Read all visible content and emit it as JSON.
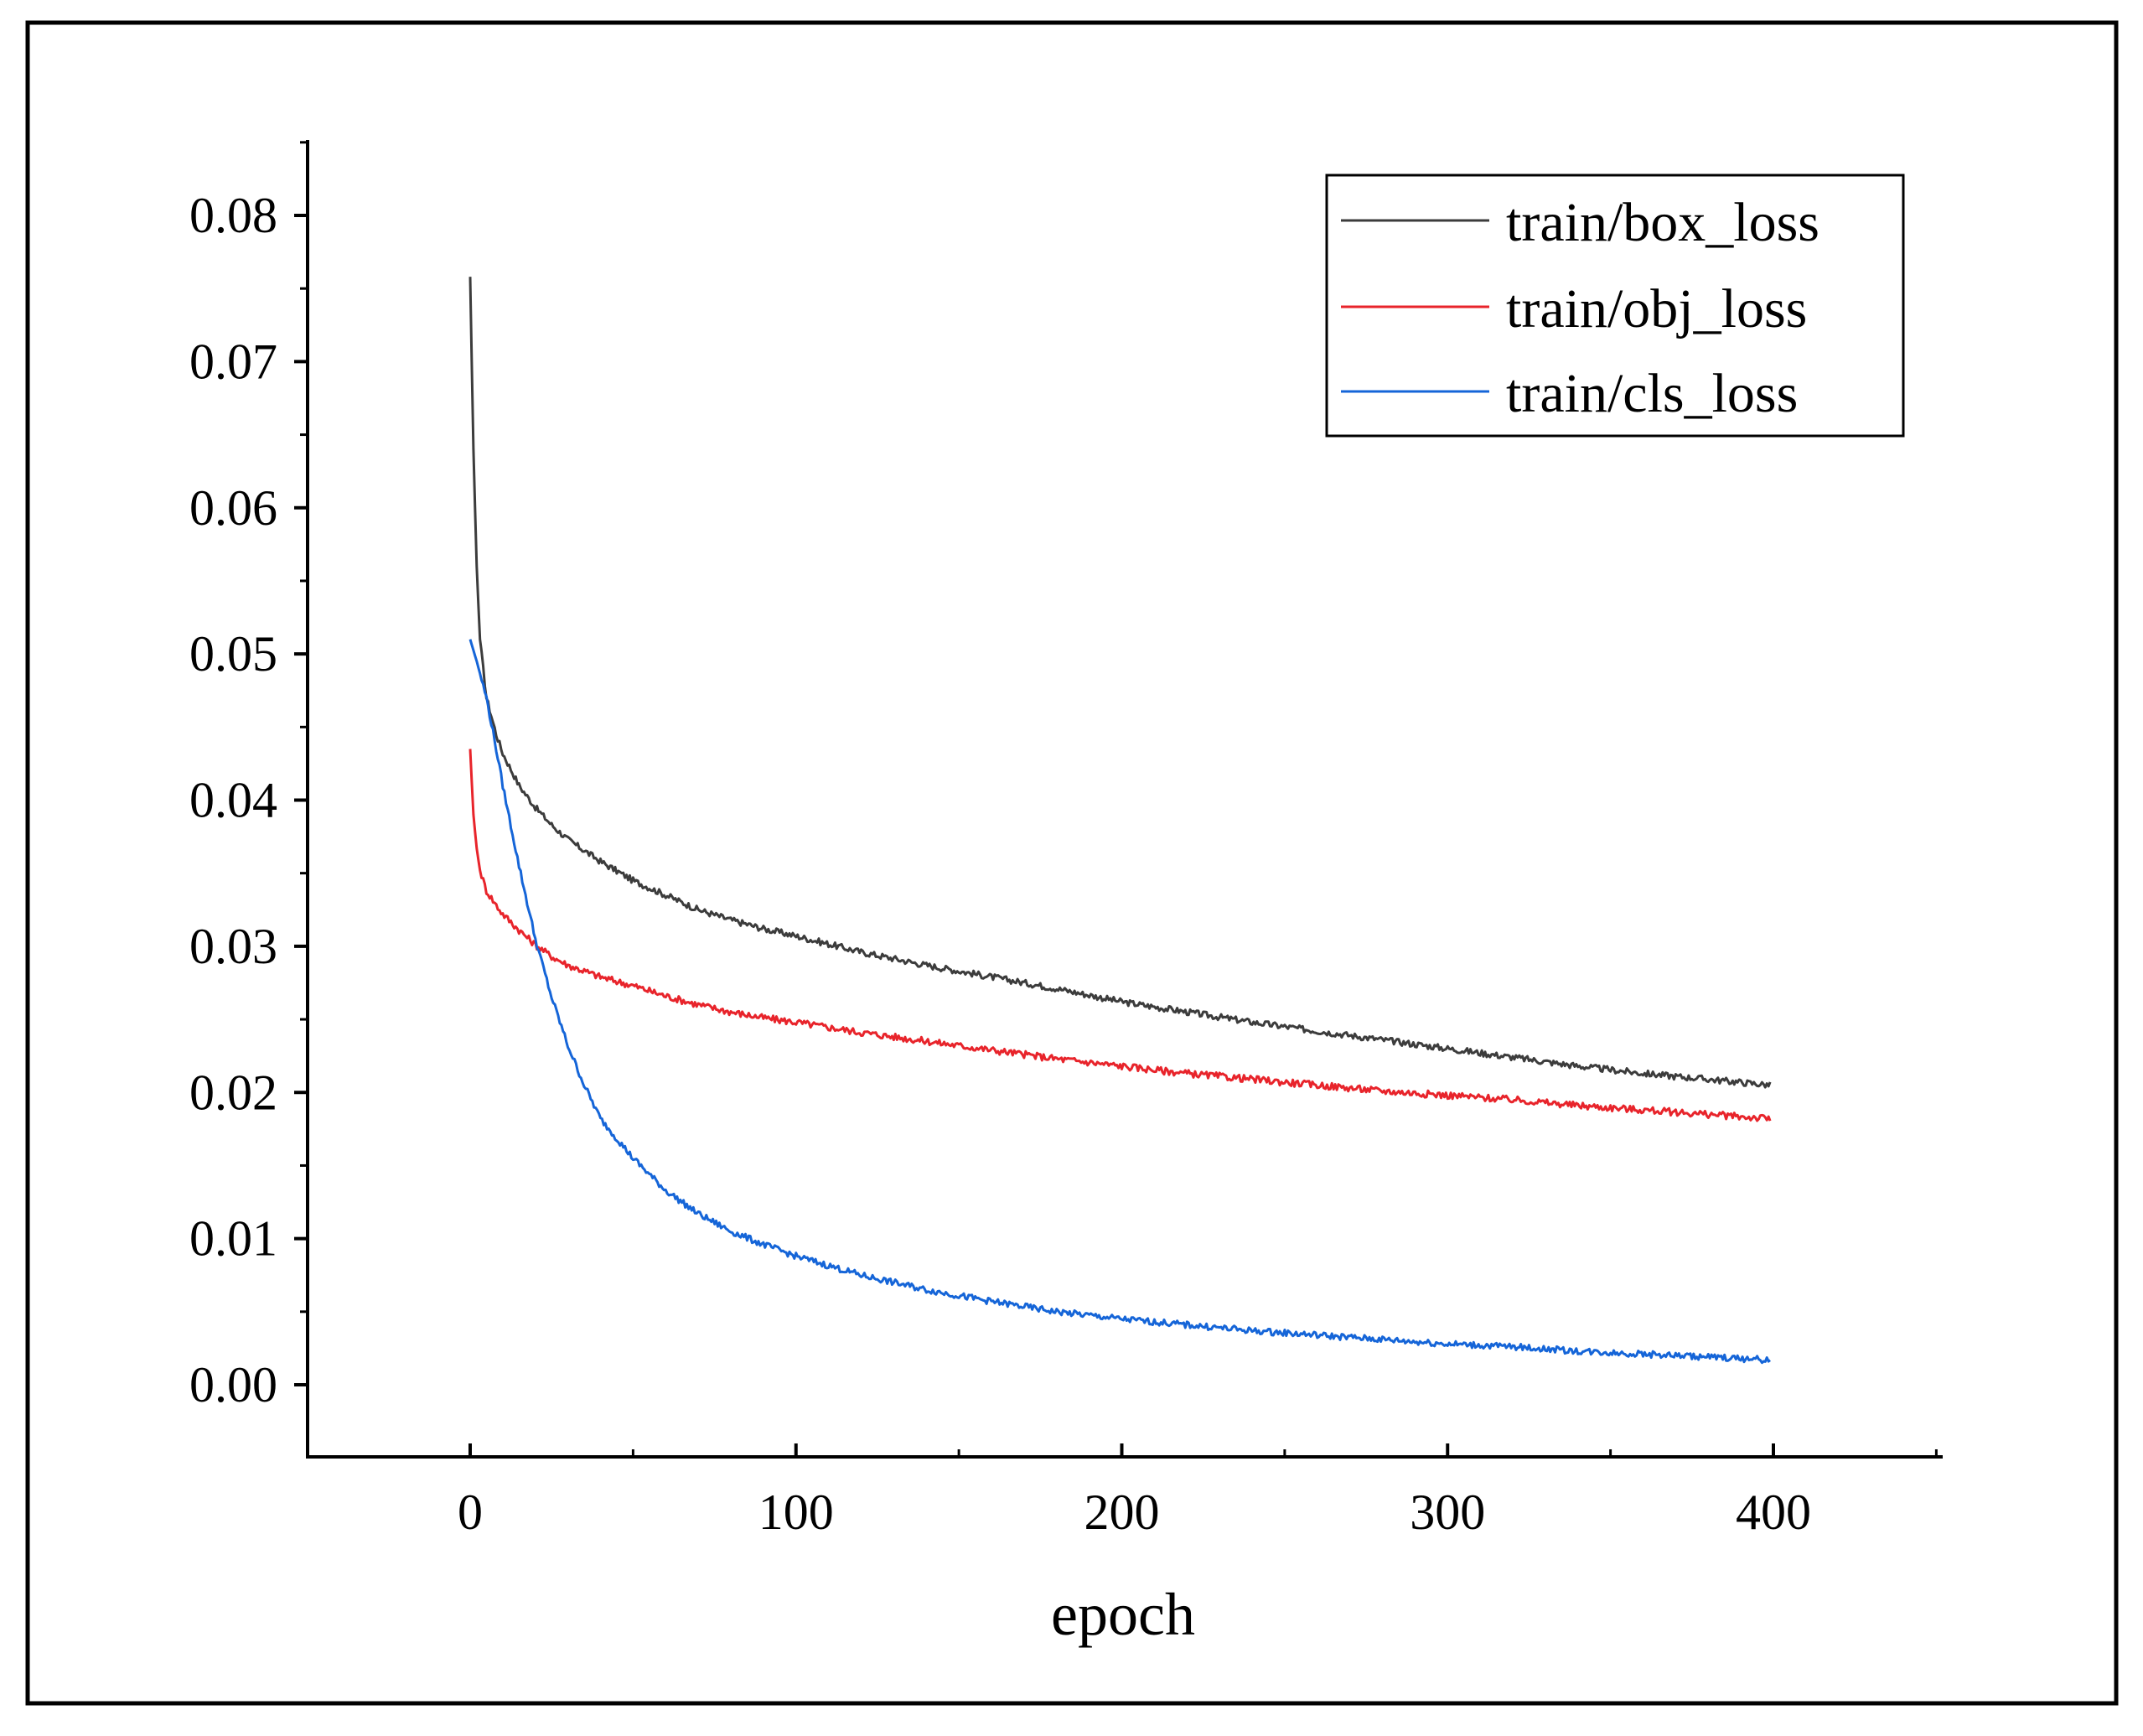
{
  "chart_data": {
    "type": "line",
    "title": "",
    "xlabel": "epoch",
    "ylabel": "",
    "xlim": [
      -50,
      450
    ],
    "ylim": [
      -0.005,
      0.085
    ],
    "grid": false,
    "legend_position": "top-right",
    "x_ticks": [
      0,
      100,
      200,
      300,
      400
    ],
    "x_tick_labels": [
      "0",
      "100",
      "200",
      "300",
      "400"
    ],
    "y_ticks": [
      0.0,
      0.01,
      0.02,
      0.03,
      0.04,
      0.05,
      0.06,
      0.07,
      0.08
    ],
    "y_tick_labels": [
      "0.00",
      "0.01",
      "0.02",
      "0.03",
      "0.04",
      "0.05",
      "0.06",
      "0.07",
      "0.08"
    ],
    "series": [
      {
        "name": "train/box_loss",
        "color": "#3c3c3c",
        "x": [
          0,
          1,
          2,
          3,
          5,
          8,
          10,
          15,
          20,
          25,
          30,
          40,
          50,
          60,
          70,
          80,
          90,
          100,
          120,
          140,
          160,
          180,
          200,
          220,
          240,
          260,
          280,
          300,
          320,
          340,
          360,
          380,
          399
        ],
        "values": [
          0.0758,
          0.064,
          0.056,
          0.051,
          0.047,
          0.0445,
          0.0432,
          0.041,
          0.0395,
          0.0383,
          0.0373,
          0.0358,
          0.0345,
          0.0335,
          0.0325,
          0.0318,
          0.0312,
          0.0307,
          0.0296,
          0.0287,
          0.0279,
          0.0271,
          0.0262,
          0.0255,
          0.0248,
          0.0242,
          0.0236,
          0.023,
          0.0224,
          0.0218,
          0.0213,
          0.0209,
          0.0205
        ]
      },
      {
        "name": "train/obj_loss",
        "color": "#e8242b",
        "x": [
          0,
          1,
          2,
          3,
          5,
          8,
          10,
          15,
          20,
          25,
          30,
          40,
          50,
          60,
          70,
          80,
          90,
          100,
          120,
          140,
          160,
          180,
          200,
          220,
          240,
          260,
          280,
          300,
          320,
          340,
          360,
          380,
          399
        ],
        "values": [
          0.0435,
          0.039,
          0.0367,
          0.0352,
          0.0338,
          0.0328,
          0.0322,
          0.0311,
          0.0301,
          0.0293,
          0.0287,
          0.0279,
          0.0273,
          0.0266,
          0.026,
          0.0255,
          0.0251,
          0.0248,
          0.0241,
          0.0235,
          0.0229,
          0.0223,
          0.0218,
          0.0213,
          0.0209,
          0.0205,
          0.0201,
          0.0198,
          0.0195,
          0.0191,
          0.0188,
          0.0185,
          0.0182
        ]
      },
      {
        "name": "train/cls_loss",
        "color": "#1565d8",
        "x": [
          0,
          2,
          5,
          8,
          10,
          15,
          20,
          25,
          30,
          35,
          40,
          50,
          60,
          70,
          80,
          90,
          100,
          120,
          140,
          160,
          180,
          200,
          220,
          240,
          260,
          280,
          300,
          320,
          340,
          360,
          380,
          399
        ],
        "values": [
          0.051,
          0.0495,
          0.047,
          0.0435,
          0.041,
          0.0355,
          0.0305,
          0.0265,
          0.0232,
          0.0205,
          0.0182,
          0.0155,
          0.0133,
          0.0117,
          0.0105,
          0.0096,
          0.0088,
          0.0075,
          0.0065,
          0.0057,
          0.005,
          0.0045,
          0.0041,
          0.0037,
          0.0034,
          0.0031,
          0.0028,
          0.0026,
          0.0023,
          0.0021,
          0.0019,
          0.0017
        ]
      }
    ]
  }
}
